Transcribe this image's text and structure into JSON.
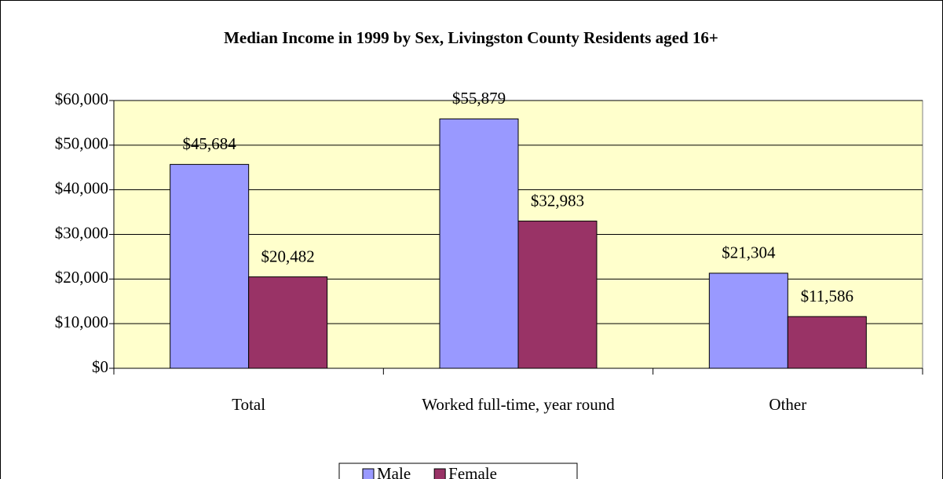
{
  "chart_data": {
    "type": "bar",
    "title": "Median Income in 1999 by Sex, Livingston County Residents aged 16+",
    "categories": [
      "Total",
      "Worked full-time, year round",
      "Other"
    ],
    "series": [
      {
        "name": "Male",
        "color": "#9999ff",
        "values": [
          45684,
          55879,
          21304
        ],
        "value_labels": [
          "$45,684",
          "$55,879",
          "$21,304"
        ]
      },
      {
        "name": "Female",
        "color": "#993366",
        "values": [
          20482,
          32983,
          11586
        ],
        "value_labels": [
          "$20,482",
          "$32,983",
          "$11,586"
        ]
      }
    ],
    "ylim": [
      0,
      60000
    ],
    "yticks": [
      {
        "value": 0,
        "label": "$0"
      },
      {
        "value": 10000,
        "label": "$10,000"
      },
      {
        "value": 20000,
        "label": "$20,000"
      },
      {
        "value": 30000,
        "label": "$30,000"
      },
      {
        "value": 40000,
        "label": "$40,000"
      },
      {
        "value": 50000,
        "label": "$50,000"
      },
      {
        "value": 60000,
        "label": "$60,000"
      }
    ],
    "grid": true,
    "legend": "bottom",
    "plot_background": "#ffffcc"
  }
}
